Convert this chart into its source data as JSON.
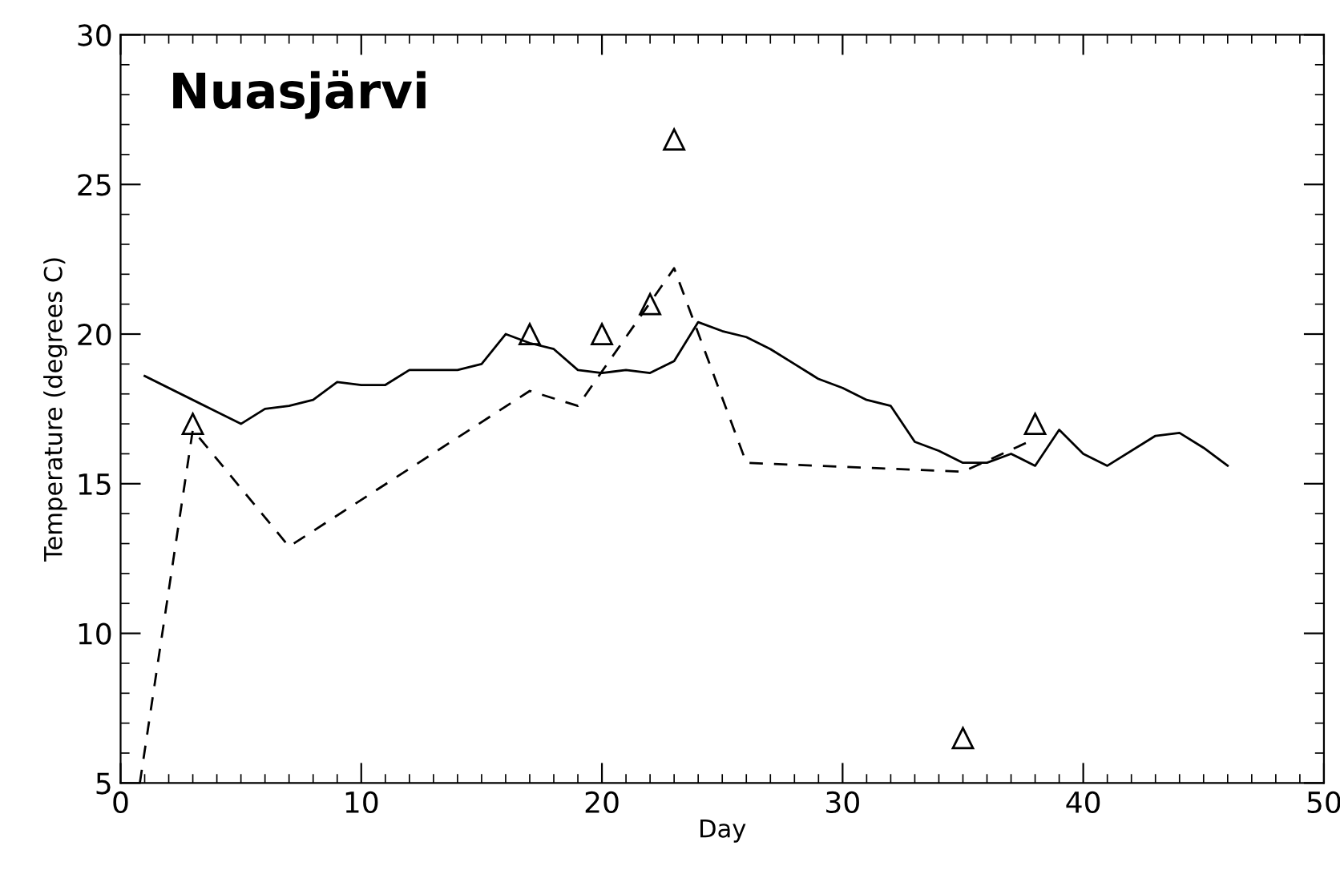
{
  "chart_data": {
    "type": "line",
    "title": "Nuasjärvi",
    "xlabel": "Day",
    "ylabel": "Temperature (degrees C)",
    "xlim": [
      0,
      50
    ],
    "xticks": [
      0,
      10,
      20,
      30,
      40,
      50
    ],
    "ylim": [
      5,
      30
    ],
    "yticks": [
      5,
      10,
      15,
      20,
      25,
      30
    ],
    "grid": false,
    "legend": false,
    "series": [
      {
        "color": "#000000",
        "line_style": "solid",
        "marker": "none",
        "x": [
          1,
          5,
          6,
          7,
          8,
          9,
          10,
          11,
          12,
          13,
          14,
          15,
          16,
          17,
          18,
          19,
          20,
          21,
          22,
          23,
          24,
          25,
          26,
          27,
          28,
          29,
          30,
          31,
          32,
          33,
          34,
          35,
          36,
          37,
          38,
          39,
          40,
          41,
          43,
          44,
          45,
          46
        ],
        "values": [
          18.6,
          17.0,
          17.5,
          17.6,
          17.8,
          18.4,
          18.3,
          18.3,
          18.8,
          18.8,
          18.8,
          19.0,
          20.0,
          19.7,
          19.5,
          18.8,
          18.7,
          18.8,
          18.7,
          19.1,
          20.4,
          20.1,
          19.9,
          19.5,
          19.0,
          18.5,
          18.2,
          17.8,
          17.6,
          16.4,
          16.1,
          15.7,
          15.7,
          16.0,
          15.6,
          16.8,
          16.0,
          15.6,
          16.6,
          16.7,
          16.2,
          15.6
        ]
      },
      {
        "color": "#000000",
        "line_style": "dashed",
        "marker": "none",
        "x": [
          0.8,
          3,
          7,
          17,
          19,
          23,
          26,
          35,
          38
        ],
        "values": [
          5.0,
          16.8,
          12.9,
          18.1,
          17.6,
          22.2,
          15.7,
          15.4,
          16.5
        ]
      },
      {
        "type": "scatter",
        "color": "#000000",
        "marker": "triangle",
        "x": [
          3,
          17,
          20,
          22,
          23,
          35,
          38
        ],
        "values": [
          17.0,
          20.0,
          20.0,
          21.0,
          26.5,
          6.5,
          17.0
        ]
      }
    ]
  }
}
